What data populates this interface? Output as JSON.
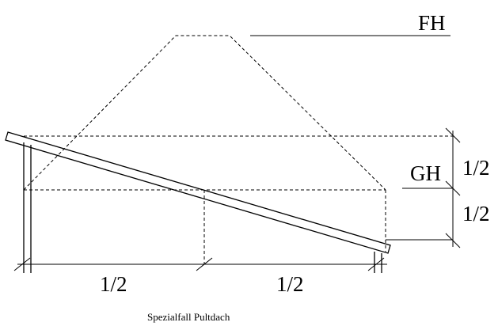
{
  "labels": {
    "fh": "FH",
    "gh": "GH",
    "half_right_upper": "1/2",
    "half_right_lower": "1/2",
    "half_bottom_left": "1/2",
    "half_bottom_right": "1/2"
  },
  "caption": "Spezialfall Pultdach"
}
